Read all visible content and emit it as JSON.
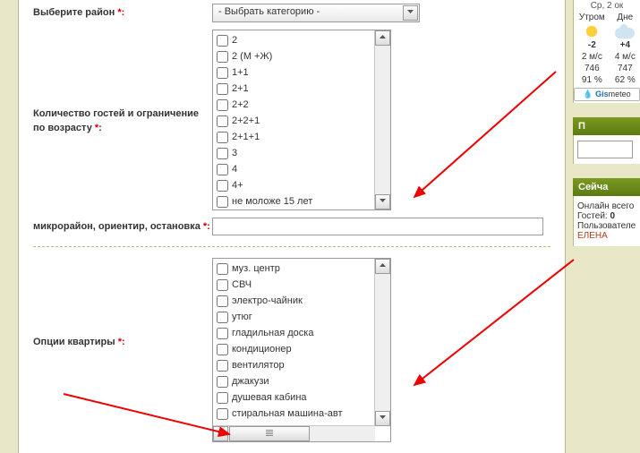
{
  "field1": {
    "label": "Выберите район ",
    "selPlaceholder": "- Выбрать категорию -"
  },
  "field2": {
    "label": "Количество гостей и ограничение по возрасту ",
    "items": [
      "2",
      "2 (М +Ж)",
      "1+1",
      "2+1",
      "2+2",
      "2+2+1",
      "2+1+1",
      "3",
      "4",
      "4+",
      "не моложе 15 лет"
    ]
  },
  "field3": {
    "label": "микрорайон, ориентир, остановка "
  },
  "field4": {
    "label": "Опции квартиры ",
    "items": [
      "муз. центр",
      "СВЧ",
      "электро-чайник",
      "утюг",
      "гладильная доска",
      "кондиционер",
      "вентилятор",
      "джакузи",
      "душевая кабина",
      "стиральная машина-авт"
    ]
  },
  "weather": {
    "date": "Ср, 2 ок",
    "col1": "Утром",
    "col2": "Дне",
    "t1": "-2",
    "t2": "+4",
    "w1": "2 м/с",
    "w2": "4 м/с",
    "p1": "746",
    "p2": "747",
    "h1": "91 %",
    "h2": "62 %",
    "gis1": "Gis",
    "gis2": "meteo"
  },
  "login": {
    "hd": "П"
  },
  "now": {
    "hd": "Сейча",
    "l1": "Онлайн всего",
    "l2p": "Гостей: ",
    "l2v": "0",
    "l3": "Пользователе",
    "l4": "ЕЛЕНА"
  },
  "req": "*:"
}
